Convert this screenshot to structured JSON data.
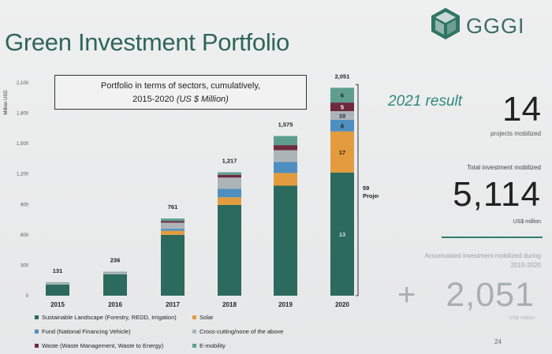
{
  "header": {
    "title": "Green Investment Portfolio",
    "logo_text": "GGGI",
    "logo_color": "#2f7565"
  },
  "annotation": {
    "line1": "Portfolio in terms of sectors, cumulatively,",
    "line2": "2015-2020",
    "unit": "(US $ Million)"
  },
  "bracket": {
    "line1": "59",
    "line2": "Projects"
  },
  "chart_data": {
    "type": "bar",
    "stacked": true,
    "ylabel": "Million USD",
    "ylim": [
      0,
      2100
    ],
    "yticks": [
      "0",
      "300",
      "600",
      "900",
      "1,200",
      "1,500",
      "1,800",
      "2,100"
    ],
    "ytick_values": [
      0,
      300,
      600,
      900,
      1200,
      1500,
      1800,
      2100
    ],
    "categories": [
      "2015",
      "2016",
      "2017",
      "2018",
      "2019",
      "2020"
    ],
    "totals": [
      131,
      236,
      761,
      1217,
      1575,
      2051
    ],
    "total_labels": [
      "131",
      "236",
      "761",
      "1,217",
      "1,575",
      "2,051"
    ],
    "grid": false,
    "legend_position": "bottom",
    "series": [
      {
        "name": "Sustainable Landscape (Forestry, REDD, Irrigation)",
        "color": "#2b6a5c",
        "values": [
          110,
          210,
          600,
          895,
          1085,
          1215
        ]
      },
      {
        "name": "Solar",
        "color": "#e39c3d",
        "values": [
          0,
          0,
          40,
          75,
          125,
          405
        ]
      },
      {
        "name": "Fund (National Financing Vehicle)",
        "color": "#4f8fbf",
        "values": [
          0,
          0,
          20,
          85,
          110,
          115
        ]
      },
      {
        "name": "Cross-cutting/none of the above",
        "color": "#adb4b8",
        "values": [
          15,
          20,
          60,
          110,
          115,
          85
        ]
      },
      {
        "name": "Waste (Waste Management, Waste to Energy)",
        "color": "#6e2a3f",
        "values": [
          0,
          0,
          15,
          27,
          50,
          85
        ]
      },
      {
        "name": "E-mobility",
        "color": "#5f9e8f",
        "values": [
          6,
          6,
          26,
          25,
          90,
          146
        ]
      }
    ],
    "segment_labels_2020": [
      "13",
      "17",
      "8",
      "10",
      "5",
      "6"
    ]
  },
  "stats": {
    "result_label": "2021 result",
    "projects_value": "14",
    "projects_label": "projects mobilized",
    "total_label": "Total investment mobilized",
    "total_value": "5,114",
    "total_unit": "US$ million",
    "accumulated_label": "Accumulated investment mobilized during 2015-2020",
    "plus": "+",
    "accumulated_value": "2,051",
    "accumulated_unit": "US$ million"
  },
  "page_number": "24"
}
